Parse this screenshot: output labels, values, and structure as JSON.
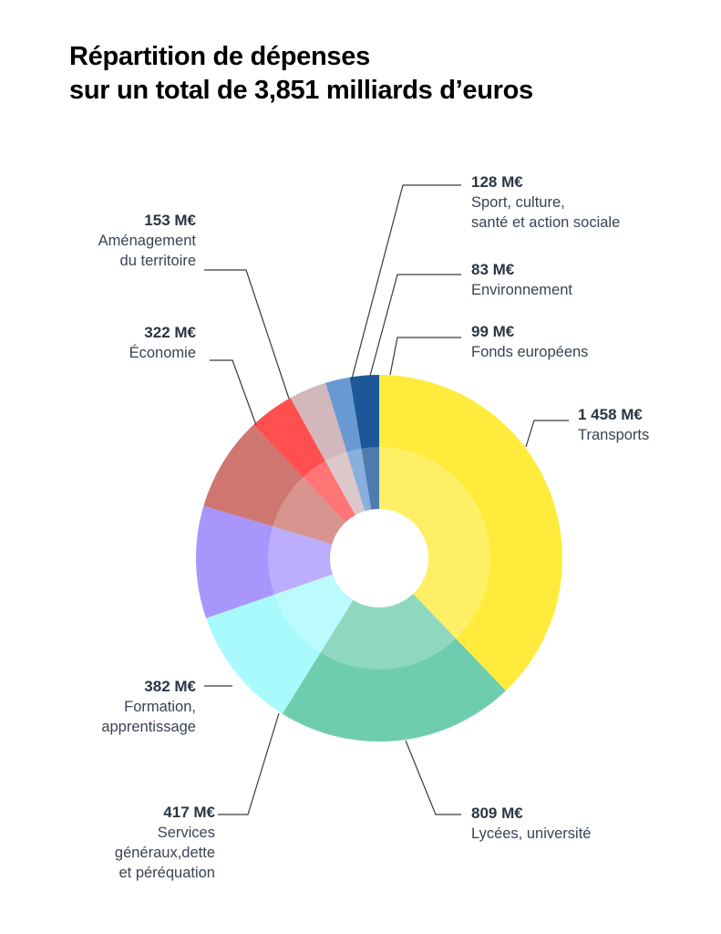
{
  "header": {
    "title_line1": "Répartition de dépenses",
    "title_line2": "sur un total de 3,851 milliards d’euros"
  },
  "chart_data": {
    "type": "pie",
    "variant": "donut",
    "unit": "M€",
    "total_label": "3,851 milliards d’euros",
    "slices": [
      {
        "id": "transports",
        "value": 1458,
        "value_label": "1 458 M€",
        "category": "Transports",
        "color": "#FFEB3B"
      },
      {
        "id": "lycees",
        "value": 809,
        "value_label": "809 M€",
        "category": "Lycées, université",
        "color": "#6FCDAF"
      },
      {
        "id": "services",
        "value": 417,
        "value_label": "417 M€",
        "category": "Services généraux,dette et péréquation",
        "color": "#A8FAFD"
      },
      {
        "id": "formation",
        "value": 382,
        "value_label": "382 M€",
        "category": "Formation, apprentissage",
        "color": "#A996FD"
      },
      {
        "id": "economie",
        "value": 322,
        "value_label": "322 M€",
        "category": "Économie",
        "color": "#CE766F"
      },
      {
        "id": "amenagement",
        "value": 153,
        "value_label": "153 M€",
        "category": "Aménagement du territoire",
        "color": "#FF4F4F"
      },
      {
        "id": "sport",
        "value": 128,
        "value_label": "128 M€",
        "category": "Sport, culture, santé et action sociale",
        "color": "#D2B8BD"
      },
      {
        "id": "environnement",
        "value": 83,
        "value_label": "83 M€",
        "category": "Environnement",
        "color": "#6899D3"
      },
      {
        "id": "fonds",
        "value": 99,
        "value_label": "99 M€",
        "category": "Fonds européens",
        "color": "#1E5799"
      }
    ]
  },
  "labels": {
    "sport": {
      "value": "128 M€",
      "lines": [
        "Sport, culture,",
        "santé et action sociale"
      ]
    },
    "amenagement": {
      "value": "153 M€",
      "lines": [
        "Aménagement",
        "du territoire"
      ]
    },
    "environnement": {
      "value": "83 M€",
      "lines": [
        "Environnement"
      ]
    },
    "economie": {
      "value": "322 M€",
      "lines": [
        "Économie"
      ]
    },
    "fonds": {
      "value": "99 M€",
      "lines": [
        "Fonds européens"
      ]
    },
    "transports": {
      "value": "1 458 M€",
      "lines": [
        "Transports"
      ]
    },
    "formation": {
      "value": "382 M€",
      "lines": [
        "Formation,",
        "apprentissage"
      ]
    },
    "services": {
      "value": "417 M€",
      "lines": [
        "Services",
        "généraux,dette",
        "et péréquation"
      ]
    },
    "lycees": {
      "value": "809 M€",
      "lines": [
        "Lycées, université"
      ]
    }
  }
}
